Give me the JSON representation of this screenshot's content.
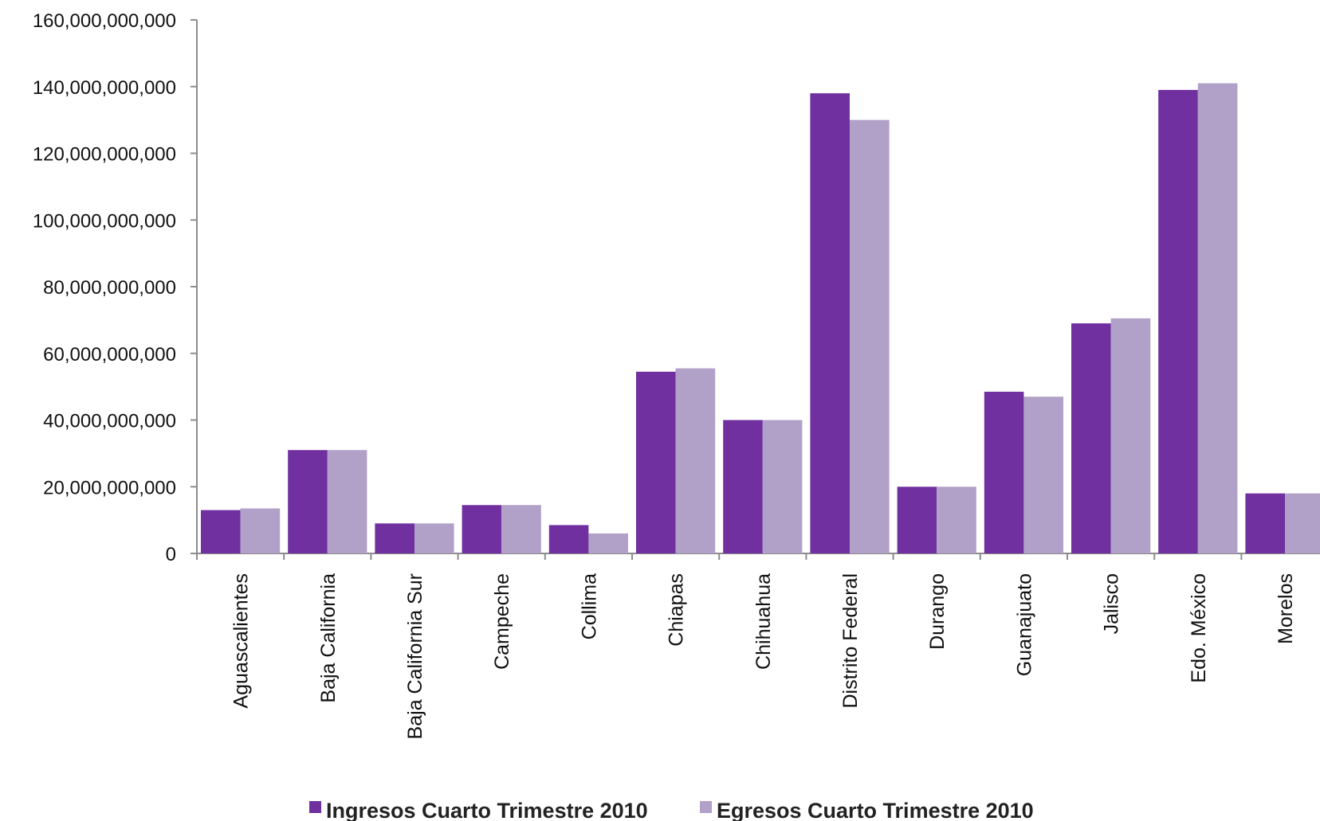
{
  "chart_data": {
    "type": "bar",
    "categories": [
      "Aguascalientes",
      "Baja California",
      "Baja California Sur",
      "Campeche",
      "Collima",
      "Chiapas",
      "Chihuahua",
      "Distrito Federal",
      "Durango",
      "Guanajuato",
      "Jalisco",
      "Edo. México",
      "Morelos"
    ],
    "series": [
      {
        "name": "Ingresos Cuarto  Trimestre  2010",
        "color": "#7030a0",
        "values": [
          13000000000,
          31000000000,
          9000000000,
          14500000000,
          8500000000,
          54500000000,
          40000000000,
          138000000000,
          20000000000,
          48500000000,
          69000000000,
          139000000000,
          18000000000
        ]
      },
      {
        "name": "Egresos Cuarto Trimestre  2010",
        "color": "#b1a0c7",
        "values": [
          13500000000,
          31000000000,
          9000000000,
          14500000000,
          6000000000,
          55500000000,
          40000000000,
          130000000000,
          20000000000,
          47000000000,
          70500000000,
          141000000000,
          18000000000
        ]
      }
    ],
    "y_ticks": [
      "0",
      "20,000,000,000",
      "40,000,000,000",
      "60,000,000,000",
      "80,000,000,000",
      "100,000,000,000",
      "120,000,000,000",
      "140,000,000,000",
      "160,000,000,000"
    ],
    "ylim": [
      0,
      160000000000
    ],
    "title": "",
    "xlabel": "",
    "ylabel": "",
    "grid": false,
    "legend_position": "bottom"
  }
}
